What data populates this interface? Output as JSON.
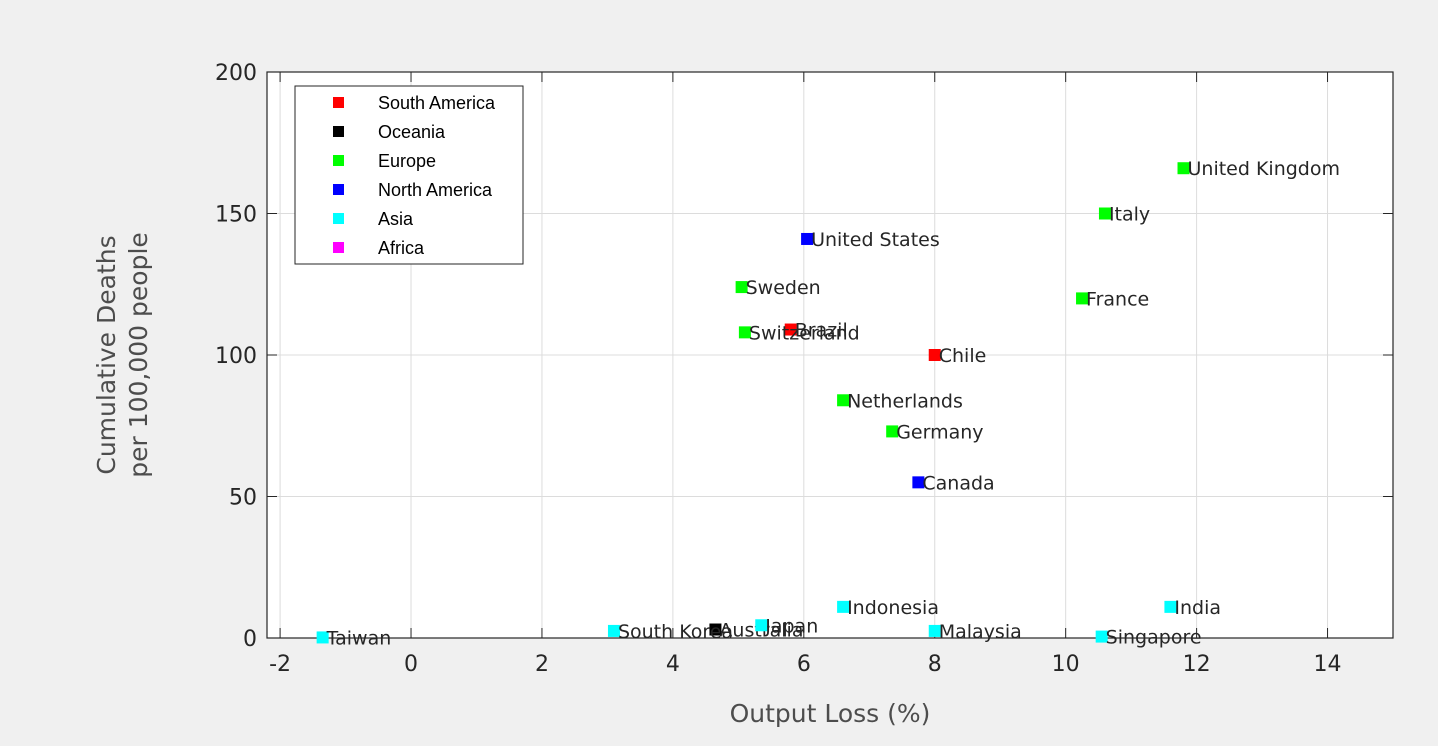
{
  "chart_data": {
    "type": "scatter",
    "xlabel": "Output Loss (%)",
    "ylabel": [
      "Cumulative Deaths",
      "per 100,000 people"
    ],
    "xlim": [
      -2.2,
      15
    ],
    "ylim": [
      0,
      200
    ],
    "xticks": [
      -2,
      0,
      2,
      4,
      6,
      8,
      10,
      12,
      14
    ],
    "yticks": [
      0,
      50,
      100,
      150,
      200
    ],
    "grid": true,
    "legend_position": "top-left",
    "series": [
      {
        "name": "South America",
        "color": "#ff0000",
        "points": [
          {
            "label": "Brazil",
            "x": 5.8,
            "y": 109
          },
          {
            "label": "Chile",
            "x": 8.0,
            "y": 100
          }
        ]
      },
      {
        "name": "Oceania",
        "color": "#000000",
        "points": [
          {
            "label": "Australia",
            "x": 4.65,
            "y": 3
          }
        ]
      },
      {
        "name": "Europe",
        "color": "#00ff00",
        "points": [
          {
            "label": "United Kingdom",
            "x": 11.8,
            "y": 166
          },
          {
            "label": "Italy",
            "x": 10.6,
            "y": 150
          },
          {
            "label": "France",
            "x": 10.25,
            "y": 120
          },
          {
            "label": "Sweden",
            "x": 5.05,
            "y": 124
          },
          {
            "label": "Switzerland",
            "x": 5.1,
            "y": 108
          },
          {
            "label": "Netherlands",
            "x": 6.6,
            "y": 84
          },
          {
            "label": "Germany",
            "x": 7.35,
            "y": 73
          }
        ]
      },
      {
        "name": "North America",
        "color": "#0000ff",
        "points": [
          {
            "label": "United States",
            "x": 6.05,
            "y": 141
          },
          {
            "label": "Canada",
            "x": 7.75,
            "y": 55
          }
        ]
      },
      {
        "name": "Asia",
        "color": "#00ffff",
        "points": [
          {
            "label": "Indonesia",
            "x": 6.6,
            "y": 11
          },
          {
            "label": "India",
            "x": 11.6,
            "y": 11
          },
          {
            "label": "South Korea",
            "x": 3.1,
            "y": 2.5
          },
          {
            "label": "Japan",
            "x": 5.35,
            "y": 4.5
          },
          {
            "label": "Malaysia",
            "x": 8.0,
            "y": 2.5
          },
          {
            "label": "Singapore",
            "x": 10.55,
            "y": 0.5
          },
          {
            "label": "Taiwan",
            "x": -1.35,
            "y": 0.2
          }
        ]
      },
      {
        "name": "Africa",
        "color": "#ff00ff",
        "points": []
      }
    ]
  }
}
